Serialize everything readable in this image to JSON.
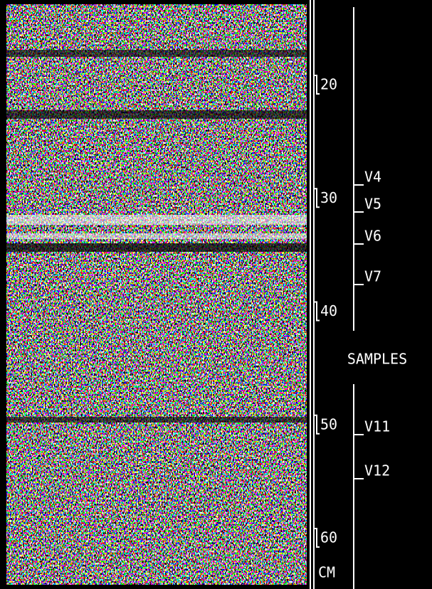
{
  "depth_scale": {
    "ticks": [
      20,
      30,
      40,
      50,
      60
    ],
    "unit": "CM"
  },
  "samples": {
    "title": "SAMPLES",
    "labels": [
      "V4",
      "V5",
      "V6",
      "V7",
      "V11",
      "V12"
    ]
  }
}
